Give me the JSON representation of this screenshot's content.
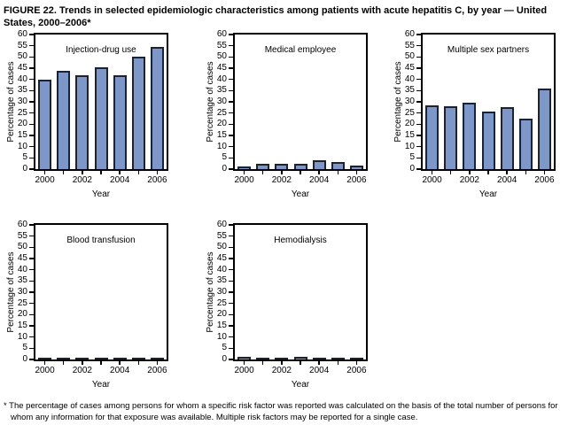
{
  "figure": {
    "title": "FIGURE 22. Trends in selected epidemiologic characteristics among patients with acute hepatitis C, by year — United States, 2000–2006*",
    "footnote": "* The percentage of cases among persons for whom a specific risk factor was reported was calculated on the basis of the total number of persons for whom any information for that exposure was available. Multiple risk factors may be reported for a single case."
  },
  "colors": {
    "bar_fill": "#7d97c9",
    "bar_border": "#1c2230",
    "axis": "#000000",
    "text": "#000000",
    "background": "#ffffff"
  },
  "chart_data": [
    {
      "type": "bar",
      "title": "Injection-drug use",
      "xlabel": "Year",
      "ylabel": "Percentage of cases",
      "ylim": [
        0,
        60
      ],
      "ytick_step": 5,
      "grid": false,
      "categories": [
        "2000",
        "2001",
        "2002",
        "2003",
        "2004",
        "2005",
        "2006"
      ],
      "xtick_labels": [
        "2000",
        "2002",
        "2004",
        "2006"
      ],
      "values": [
        40,
        44,
        42,
        45.5,
        42,
        50,
        54.5
      ]
    },
    {
      "type": "bar",
      "title": "Medical employee",
      "xlabel": "Year",
      "ylabel": "Percentage of cases",
      "ylim": [
        0,
        60
      ],
      "ytick_step": 5,
      "grid": false,
      "categories": [
        "2000",
        "2001",
        "2002",
        "2003",
        "2004",
        "2005",
        "2006"
      ],
      "xtick_labels": [
        "2000",
        "2002",
        "2004",
        "2006"
      ],
      "values": [
        1,
        2.5,
        2.5,
        2.2,
        4,
        3,
        1.5
      ]
    },
    {
      "type": "bar",
      "title": "Multiple sex partners",
      "xlabel": "Year",
      "ylabel": "Percentage of cases",
      "ylim": [
        0,
        60
      ],
      "ytick_step": 5,
      "grid": false,
      "categories": [
        "2000",
        "2001",
        "2002",
        "2003",
        "2004",
        "2005",
        "2006"
      ],
      "xtick_labels": [
        "2000",
        "2002",
        "2004",
        "2006"
      ],
      "values": [
        28.5,
        28,
        29.5,
        25.5,
        27.5,
        22.5,
        36
      ]
    },
    {
      "type": "bar",
      "title": "Blood transfusion",
      "xlabel": "Year",
      "ylabel": "Percentage of cases",
      "ylim": [
        0,
        60
      ],
      "ytick_step": 5,
      "grid": false,
      "categories": [
        "2000",
        "2001",
        "2002",
        "2003",
        "2004",
        "2005",
        "2006"
      ],
      "xtick_labels": [
        "2000",
        "2002",
        "2004",
        "2006"
      ],
      "values": [
        0.7,
        0.1,
        0.4,
        0.7,
        0.7,
        0.6,
        0.1
      ]
    },
    {
      "type": "bar",
      "title": "Hemodialysis",
      "xlabel": "Year",
      "ylabel": "Percentage of cases",
      "ylim": [
        0,
        60
      ],
      "ytick_step": 5,
      "grid": false,
      "categories": [
        "2000",
        "2001",
        "2002",
        "2003",
        "2004",
        "2005",
        "2006"
      ],
      "xtick_labels": [
        "2000",
        "2002",
        "2004",
        "2006"
      ],
      "values": [
        1,
        0.1,
        0.6,
        1,
        0.6,
        0.1,
        0.1
      ]
    }
  ]
}
